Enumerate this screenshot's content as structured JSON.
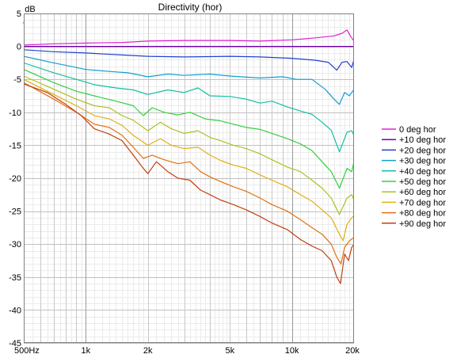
{
  "chart_data": {
    "type": "line",
    "title": "Directivity (hor)",
    "ylabel": "dB",
    "xscale": "log",
    "xlim": [
      500,
      20000
    ],
    "ylim": [
      -45,
      5
    ],
    "grid": true,
    "legend_position": "right",
    "x_ticks": [
      {
        "value": 500,
        "label": "500Hz"
      },
      {
        "value": 1000,
        "label": "1k"
      },
      {
        "value": 2000,
        "label": "2k"
      },
      {
        "value": 5000,
        "label": "5k"
      },
      {
        "value": 10000,
        "label": "10k"
      },
      {
        "value": 20000,
        "label": "20k"
      }
    ],
    "y_ticks": [
      {
        "value": 5,
        "label": "5"
      },
      {
        "value": 0,
        "label": "0"
      },
      {
        "value": -5,
        "label": "-5"
      },
      {
        "value": -10,
        "label": "-10"
      },
      {
        "value": -15,
        "label": "-15"
      },
      {
        "value": -20,
        "label": "-20"
      },
      {
        "value": -25,
        "label": "-25"
      },
      {
        "value": -30,
        "label": "-30"
      },
      {
        "value": -35,
        "label": "-35"
      },
      {
        "value": -40,
        "label": "-40"
      },
      {
        "value": -45,
        "label": "-45"
      }
    ],
    "series": [
      {
        "name": "0 deg hor",
        "color": "#e020d0",
        "x": [
          500,
          700,
          1000,
          1500,
          2000,
          3000,
          5000,
          7000,
          10000,
          13000,
          16000,
          17500,
          18500,
          19200,
          20000
        ],
        "y": [
          0.2,
          0.4,
          0.5,
          0.6,
          0.8,
          0.9,
          0.9,
          0.8,
          1.0,
          1.3,
          1.6,
          2.0,
          2.5,
          1.6,
          0.8
        ]
      },
      {
        "name": "+10 deg hor",
        "color": "#7000b0",
        "x": [
          500,
          20000
        ],
        "y": [
          0,
          0
        ]
      },
      {
        "name": "+20 deg hor",
        "color": "#2040d0",
        "x": [
          500,
          700,
          1000,
          1500,
          2000,
          3000,
          5000,
          7000,
          10000,
          13000,
          15000,
          16500,
          17500,
          18500,
          19500,
          20000
        ],
        "y": [
          -0.5,
          -0.8,
          -1.0,
          -1.3,
          -1.5,
          -1.6,
          -1.5,
          -1.6,
          -1.8,
          -2.1,
          -2.4,
          -3.6,
          -2.4,
          -2.3,
          -3.2,
          -2.0
        ]
      },
      {
        "name": "+30 deg hor",
        "color": "#10a0d0",
        "x": [
          500,
          700,
          1000,
          1300,
          1600,
          2000,
          2500,
          3000,
          4000,
          5000,
          7000,
          9000,
          10500,
          12500,
          14500,
          16000,
          17000,
          18000,
          19000,
          20000
        ],
        "y": [
          -1.5,
          -2.5,
          -3.5,
          -3.8,
          -4.0,
          -4.6,
          -4.2,
          -4.4,
          -4.2,
          -4.5,
          -4.8,
          -4.6,
          -5.0,
          -5.0,
          -6.5,
          -8.0,
          -8.8,
          -7.0,
          -7.5,
          -6.5
        ]
      },
      {
        "name": "+40 deg hor",
        "color": "#10c0a0",
        "x": [
          500,
          700,
          900,
          1100,
          1400,
          1700,
          2000,
          2500,
          3000,
          3500,
          4000,
          5000,
          6000,
          7000,
          8000,
          9500,
          11000,
          12500,
          14000,
          15500,
          17000,
          18500,
          19500,
          20000
        ],
        "y": [
          -2.5,
          -4.0,
          -5.0,
          -5.8,
          -6.3,
          -6.6,
          -7.3,
          -6.6,
          -7.0,
          -6.3,
          -7.5,
          -7.6,
          -8.0,
          -8.6,
          -8.3,
          -9.2,
          -9.8,
          -10.3,
          -11.5,
          -12.7,
          -16.0,
          -13.0,
          -12.8,
          -13.5
        ]
      },
      {
        "name": "+50 deg hor",
        "color": "#30d040",
        "x": [
          500,
          700,
          900,
          1100,
          1400,
          1700,
          1900,
          2100,
          2400,
          2800,
          3200,
          3800,
          4500,
          5200,
          6000,
          7000,
          8000,
          9500,
          11000,
          12500,
          14000,
          15500,
          17000,
          18500,
          19500,
          20000
        ],
        "y": [
          -3.5,
          -5.5,
          -6.8,
          -7.5,
          -8.3,
          -9.0,
          -10.5,
          -9.3,
          -10.0,
          -10.4,
          -10.0,
          -11.0,
          -11.3,
          -11.8,
          -12.3,
          -12.6,
          -13.2,
          -14.0,
          -14.8,
          -15.8,
          -17.5,
          -19.0,
          -21.5,
          -18.5,
          -19.0,
          -17.5
        ]
      },
      {
        "name": "+60 deg hor",
        "color": "#b0c020",
        "x": [
          500,
          700,
          900,
          1100,
          1300,
          1500,
          1700,
          2000,
          2300,
          2600,
          3000,
          3500,
          4000,
          4500,
          5200,
          6000,
          7000,
          8000,
          9500,
          11000,
          12500,
          14000,
          15500,
          17000,
          18500,
          19500,
          20000
        ],
        "y": [
          -4.5,
          -6.5,
          -8.0,
          -9.0,
          -9.3,
          -10.5,
          -11.2,
          -12.8,
          -11.5,
          -12.5,
          -13.2,
          -12.8,
          -13.8,
          -14.3,
          -15.0,
          -15.5,
          -16.3,
          -17.2,
          -18.3,
          -19.0,
          -20.3,
          -21.5,
          -23.0,
          -25.5,
          -23.0,
          -22.5,
          -23.3
        ]
      },
      {
        "name": "+70 deg hor",
        "color": "#e0b010",
        "x": [
          500,
          700,
          900,
          1100,
          1300,
          1500,
          1700,
          2000,
          2300,
          2600,
          3000,
          3500,
          4000,
          4500,
          5200,
          6000,
          7000,
          8000,
          9500,
          11000,
          12500,
          14000,
          15500,
          17000,
          17700,
          18500,
          19500,
          20000
        ],
        "y": [
          -5.0,
          -7.3,
          -9.0,
          -10.5,
          -11.0,
          -12.0,
          -13.5,
          -15.0,
          -14.0,
          -15.0,
          -15.5,
          -15.3,
          -16.5,
          -17.3,
          -18.0,
          -18.5,
          -19.5,
          -20.3,
          -21.3,
          -22.5,
          -23.5,
          -24.8,
          -26.0,
          -28.5,
          -29.5,
          -27.0,
          -26.0,
          -25.7
        ]
      },
      {
        "name": "+80 deg hor",
        "color": "#e07010",
        "x": [
          500,
          700,
          900,
          1100,
          1300,
          1500,
          1700,
          1900,
          2100,
          2400,
          2800,
          3200,
          3600,
          4000,
          4500,
          5200,
          6000,
          7000,
          8000,
          9500,
          11000,
          12500,
          14000,
          15500,
          16500,
          17300,
          18000,
          19000,
          20000
        ],
        "y": [
          -5.5,
          -8.0,
          -10.0,
          -11.8,
          -12.3,
          -13.5,
          -15.3,
          -17.0,
          -16.5,
          -17.2,
          -17.8,
          -17.5,
          -19.0,
          -19.8,
          -20.5,
          -21.3,
          -22.0,
          -23.0,
          -24.0,
          -25.0,
          -26.3,
          -27.5,
          -28.5,
          -30.0,
          -32.0,
          -33.0,
          -30.5,
          -29.5,
          -29.0
        ]
      },
      {
        "name": "+90 deg hor",
        "color": "#c04010",
        "x": [
          500,
          650,
          800,
          950,
          1100,
          1300,
          1500,
          1700,
          1900,
          2000,
          2200,
          2500,
          2800,
          3200,
          3600,
          4000,
          4500,
          5200,
          6000,
          7000,
          8000,
          9500,
          11000,
          12500,
          14000,
          15500,
          16500,
          17200,
          18000,
          18800,
          19500,
          20000
        ],
        "y": [
          -5.7,
          -7.0,
          -8.8,
          -10.5,
          -12.5,
          -13.3,
          -14.3,
          -16.5,
          -18.5,
          -19.3,
          -17.5,
          -19.0,
          -20.0,
          -20.3,
          -21.8,
          -22.5,
          -23.3,
          -24.0,
          -24.8,
          -25.8,
          -26.8,
          -27.8,
          -29.3,
          -30.3,
          -31.0,
          -32.5,
          -35.0,
          -36.0,
          -31.5,
          -32.5,
          -30.5,
          -30.0
        ]
      }
    ]
  }
}
